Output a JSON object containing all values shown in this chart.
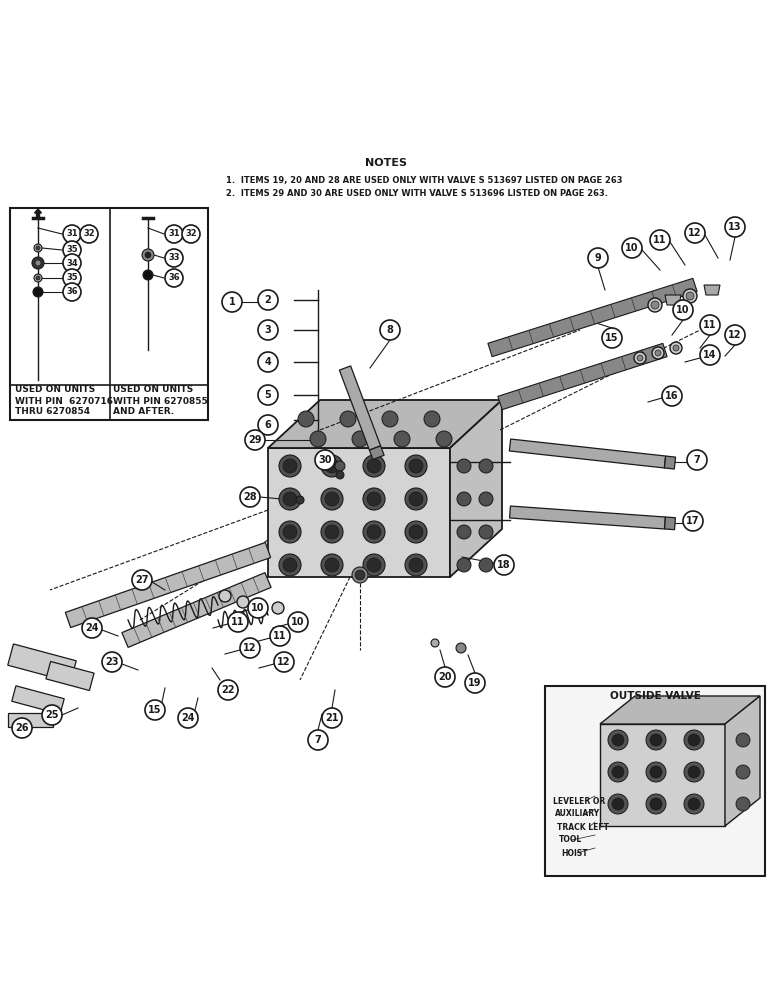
{
  "bg_color": "#ffffff",
  "line_color": "#1a1a1a",
  "title": "NOTES",
  "note1": "1.  ITEMS 19, 20 AND 28 ARE USED ONLY WITH VALVE S 513697 LISTED ON PAGE 263",
  "note2": "2.  ITEMS 29 AND 30 ARE USED ONLY WITH VALVE S 513696 LISTED ON PAGE 263.",
  "box1_line1": "USED ON UNITS",
  "box1_line2": "WITH PIN  6270716",
  "box1_line3": "THRU 6270854",
  "box2_line1": "USED ON UNITS",
  "box2_line2": "WITH PIN 6270855",
  "box2_line3": "AND AFTER.",
  "inset_title": "OUTSIDE VALVE",
  "inset_labels": [
    "LEVELER OR",
    "AUXILIARY",
    "TRACK LEFT",
    "TOOL",
    "HOIST"
  ]
}
